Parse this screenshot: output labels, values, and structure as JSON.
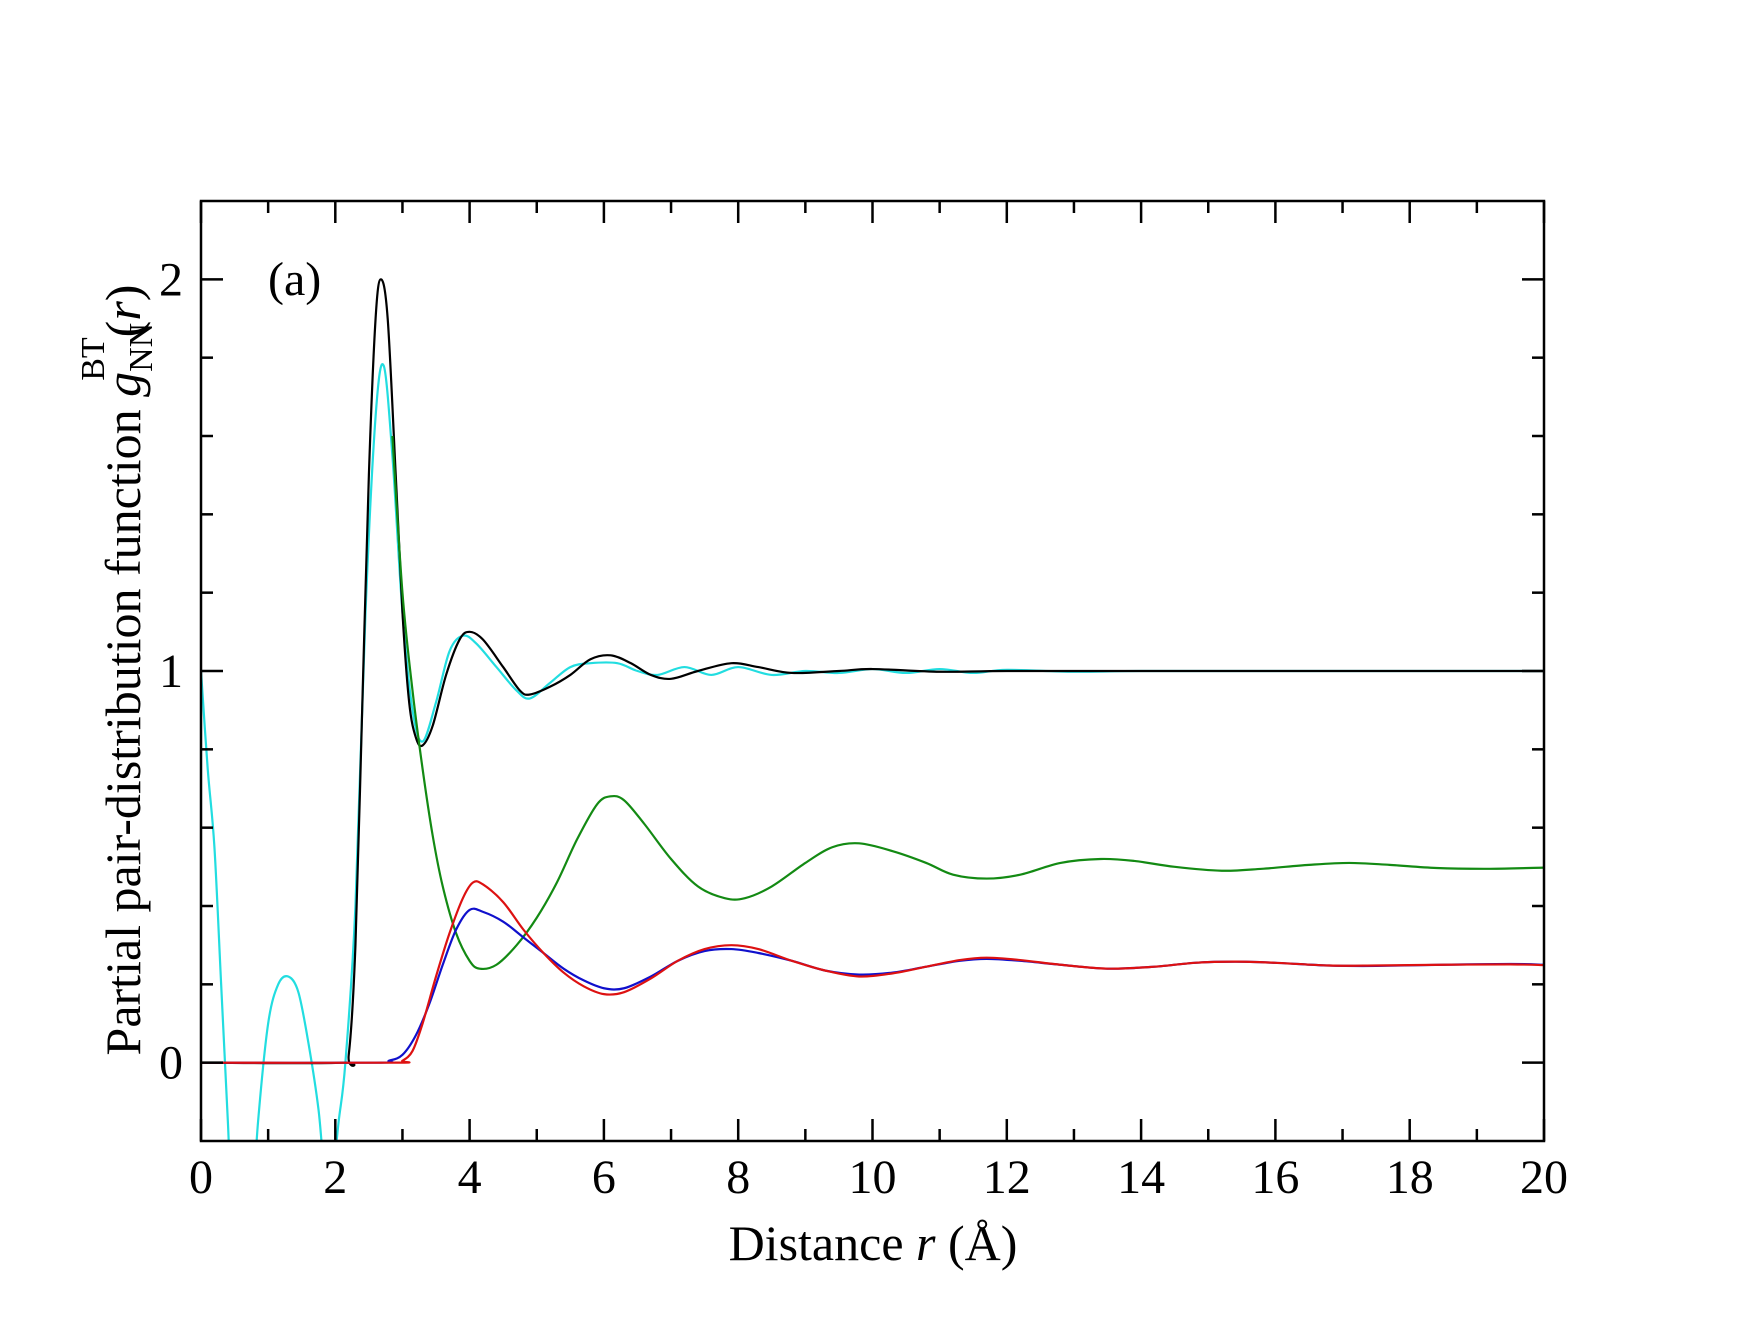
{
  "chart_data": {
    "type": "line",
    "panel_label": "(a)",
    "xlabel": {
      "prefix": "Distance ",
      "var": "r",
      "suffix": " (Å)"
    },
    "ylabel": {
      "prefix": "Partial pair-distribution function ",
      "var": "g",
      "sub": "NN",
      "sup": "BT",
      "arg_open": "(",
      "arg": "r",
      "arg_close": ")"
    },
    "xlim": [
      0,
      20
    ],
    "ylim": [
      -0.2,
      2.2
    ],
    "x_major_ticks": [
      0,
      2,
      4,
      6,
      8,
      10,
      12,
      14,
      16,
      18,
      20
    ],
    "x_tick_labels": [
      "0",
      "2",
      "4",
      "6",
      "8",
      "10",
      "12",
      "14",
      "16",
      "18",
      "20"
    ],
    "x_minor_step": 1,
    "y_major_ticks": [
      0,
      1,
      2
    ],
    "y_tick_labels": [
      "0",
      "1",
      "2"
    ],
    "y_minor_step": 0.2,
    "grid": false,
    "series": [
      {
        "name": "cyan",
        "color": "#22dde0",
        "points": [
          [
            0,
            1.0
          ],
          [
            0.1,
            0.75
          ],
          [
            0.2,
            0.55
          ],
          [
            0.3,
            0.2
          ],
          [
            0.4,
            -0.15
          ],
          [
            0.5,
            -0.5
          ],
          [
            0.7,
            -0.5
          ],
          [
            0.85,
            -0.15
          ],
          [
            1.0,
            0.1
          ],
          [
            1.15,
            0.2
          ],
          [
            1.3,
            0.22
          ],
          [
            1.45,
            0.18
          ],
          [
            1.6,
            0.05
          ],
          [
            1.75,
            -0.12
          ],
          [
            1.85,
            -0.3
          ],
          [
            1.95,
            -0.3
          ],
          [
            2.05,
            -0.15
          ],
          [
            2.15,
            0.0
          ],
          [
            2.3,
            0.4
          ],
          [
            2.45,
            1.15
          ],
          [
            2.6,
            1.65
          ],
          [
            2.72,
            1.78
          ],
          [
            2.85,
            1.55
          ],
          [
            3.0,
            1.15
          ],
          [
            3.15,
            0.9
          ],
          [
            3.3,
            0.82
          ],
          [
            3.5,
            0.92
          ],
          [
            3.7,
            1.05
          ],
          [
            3.9,
            1.09
          ],
          [
            4.1,
            1.07
          ],
          [
            4.4,
            1.01
          ],
          [
            4.7,
            0.95
          ],
          [
            4.9,
            0.93
          ],
          [
            5.2,
            0.97
          ],
          [
            5.5,
            1.01
          ],
          [
            5.8,
            1.02
          ],
          [
            6.2,
            1.02
          ],
          [
            6.5,
            1.0
          ],
          [
            6.8,
            0.99
          ],
          [
            7.2,
            1.01
          ],
          [
            7.6,
            0.99
          ],
          [
            8.0,
            1.01
          ],
          [
            8.5,
            0.99
          ],
          [
            9.0,
            1.0
          ],
          [
            9.5,
            0.995
          ],
          [
            10.0,
            1.005
          ],
          [
            10.5,
            0.995
          ],
          [
            11.0,
            1.005
          ],
          [
            11.5,
            0.995
          ],
          [
            12.0,
            1.003
          ],
          [
            13.0,
            0.998
          ],
          [
            14.0,
            1.0
          ],
          [
            16.0,
            1.0
          ],
          [
            18.0,
            1.0
          ],
          [
            20.0,
            1.0
          ]
        ]
      },
      {
        "name": "black",
        "color": "#000000",
        "points": [
          [
            0,
            0
          ],
          [
            2.1,
            0
          ],
          [
            2.2,
            0.02
          ],
          [
            2.3,
            0.3
          ],
          [
            2.4,
            0.9
          ],
          [
            2.5,
            1.5
          ],
          [
            2.6,
            1.9
          ],
          [
            2.68,
            2.0
          ],
          [
            2.78,
            1.9
          ],
          [
            2.9,
            1.5
          ],
          [
            3.0,
            1.15
          ],
          [
            3.1,
            0.92
          ],
          [
            3.2,
            0.83
          ],
          [
            3.3,
            0.81
          ],
          [
            3.45,
            0.86
          ],
          [
            3.65,
            0.99
          ],
          [
            3.85,
            1.08
          ],
          [
            4.0,
            1.1
          ],
          [
            4.2,
            1.08
          ],
          [
            4.5,
            1.01
          ],
          [
            4.75,
            0.95
          ],
          [
            4.9,
            0.94
          ],
          [
            5.2,
            0.96
          ],
          [
            5.5,
            0.99
          ],
          [
            5.8,
            1.03
          ],
          [
            6.1,
            1.04
          ],
          [
            6.4,
            1.02
          ],
          [
            6.7,
            0.99
          ],
          [
            7.0,
            0.98
          ],
          [
            7.4,
            1.0
          ],
          [
            7.9,
            1.02
          ],
          [
            8.3,
            1.01
          ],
          [
            8.8,
            0.995
          ],
          [
            9.5,
            1.0
          ],
          [
            10.0,
            1.005
          ],
          [
            11.0,
            0.998
          ],
          [
            12.0,
            1.0
          ],
          [
            14.0,
            1.0
          ],
          [
            16.0,
            1.0
          ],
          [
            18.0,
            1.0
          ],
          [
            20.0,
            1.0
          ]
        ]
      },
      {
        "name": "green",
        "color": "#138a13",
        "points": [
          [
            2.85,
            1.6
          ],
          [
            3.0,
            1.2
          ],
          [
            3.15,
            0.95
          ],
          [
            3.3,
            0.75
          ],
          [
            3.45,
            0.58
          ],
          [
            3.6,
            0.45
          ],
          [
            3.8,
            0.33
          ],
          [
            4.0,
            0.26
          ],
          [
            4.15,
            0.24
          ],
          [
            4.4,
            0.25
          ],
          [
            4.7,
            0.3
          ],
          [
            5.0,
            0.37
          ],
          [
            5.3,
            0.46
          ],
          [
            5.6,
            0.57
          ],
          [
            5.9,
            0.66
          ],
          [
            6.1,
            0.68
          ],
          [
            6.3,
            0.67
          ],
          [
            6.6,
            0.61
          ],
          [
            7.0,
            0.52
          ],
          [
            7.4,
            0.45
          ],
          [
            7.8,
            0.42
          ],
          [
            8.1,
            0.42
          ],
          [
            8.5,
            0.45
          ],
          [
            9.0,
            0.51
          ],
          [
            9.4,
            0.55
          ],
          [
            9.8,
            0.56
          ],
          [
            10.3,
            0.54
          ],
          [
            10.8,
            0.51
          ],
          [
            11.2,
            0.48
          ],
          [
            11.7,
            0.47
          ],
          [
            12.2,
            0.48
          ],
          [
            12.8,
            0.51
          ],
          [
            13.4,
            0.52
          ],
          [
            13.9,
            0.515
          ],
          [
            14.5,
            0.5
          ],
          [
            15.2,
            0.49
          ],
          [
            15.8,
            0.495
          ],
          [
            16.5,
            0.505
          ],
          [
            17.1,
            0.51
          ],
          [
            17.7,
            0.505
          ],
          [
            18.4,
            0.497
          ],
          [
            19.2,
            0.495
          ],
          [
            20.0,
            0.498
          ]
        ]
      },
      {
        "name": "blue",
        "color": "#1010cc",
        "points": [
          [
            0,
            0
          ],
          [
            2.6,
            0
          ],
          [
            2.8,
            0.005
          ],
          [
            3.0,
            0.02
          ],
          [
            3.2,
            0.07
          ],
          [
            3.4,
            0.15
          ],
          [
            3.6,
            0.25
          ],
          [
            3.8,
            0.34
          ],
          [
            4.0,
            0.39
          ],
          [
            4.2,
            0.385
          ],
          [
            4.5,
            0.36
          ],
          [
            4.8,
            0.32
          ],
          [
            5.1,
            0.28
          ],
          [
            5.4,
            0.24
          ],
          [
            5.7,
            0.21
          ],
          [
            6.0,
            0.19
          ],
          [
            6.3,
            0.19
          ],
          [
            6.7,
            0.22
          ],
          [
            7.1,
            0.26
          ],
          [
            7.5,
            0.285
          ],
          [
            7.9,
            0.29
          ],
          [
            8.3,
            0.28
          ],
          [
            8.8,
            0.26
          ],
          [
            9.3,
            0.235
          ],
          [
            9.8,
            0.225
          ],
          [
            10.3,
            0.23
          ],
          [
            10.8,
            0.245
          ],
          [
            11.3,
            0.26
          ],
          [
            11.7,
            0.265
          ],
          [
            12.2,
            0.26
          ],
          [
            12.8,
            0.25
          ],
          [
            13.5,
            0.24
          ],
          [
            14.2,
            0.245
          ],
          [
            14.8,
            0.255
          ],
          [
            15.4,
            0.258
          ],
          [
            16.0,
            0.255
          ],
          [
            16.8,
            0.248
          ],
          [
            17.5,
            0.247
          ],
          [
            18.5,
            0.25
          ],
          [
            19.5,
            0.252
          ],
          [
            20.0,
            0.25
          ]
        ]
      },
      {
        "name": "red",
        "color": "#dd1111",
        "points": [
          [
            0,
            0
          ],
          [
            2.85,
            0
          ],
          [
            3.0,
            0.005
          ],
          [
            3.15,
            0.03
          ],
          [
            3.3,
            0.1
          ],
          [
            3.5,
            0.22
          ],
          [
            3.7,
            0.33
          ],
          [
            3.9,
            0.42
          ],
          [
            4.05,
            0.46
          ],
          [
            4.2,
            0.455
          ],
          [
            4.5,
            0.41
          ],
          [
            4.8,
            0.34
          ],
          [
            5.1,
            0.28
          ],
          [
            5.4,
            0.23
          ],
          [
            5.7,
            0.195
          ],
          [
            6.0,
            0.175
          ],
          [
            6.3,
            0.18
          ],
          [
            6.7,
            0.215
          ],
          [
            7.1,
            0.26
          ],
          [
            7.5,
            0.29
          ],
          [
            7.9,
            0.3
          ],
          [
            8.3,
            0.29
          ],
          [
            8.8,
            0.26
          ],
          [
            9.3,
            0.235
          ],
          [
            9.8,
            0.22
          ],
          [
            10.3,
            0.228
          ],
          [
            10.8,
            0.245
          ],
          [
            11.3,
            0.262
          ],
          [
            11.7,
            0.268
          ],
          [
            12.2,
            0.262
          ],
          [
            12.8,
            0.25
          ],
          [
            13.5,
            0.24
          ],
          [
            14.2,
            0.245
          ],
          [
            14.8,
            0.255
          ],
          [
            15.4,
            0.258
          ],
          [
            16.0,
            0.255
          ],
          [
            16.8,
            0.248
          ],
          [
            17.5,
            0.248
          ],
          [
            18.5,
            0.25
          ],
          [
            19.5,
            0.251
          ],
          [
            20.0,
            0.249
          ]
        ]
      }
    ]
  }
}
